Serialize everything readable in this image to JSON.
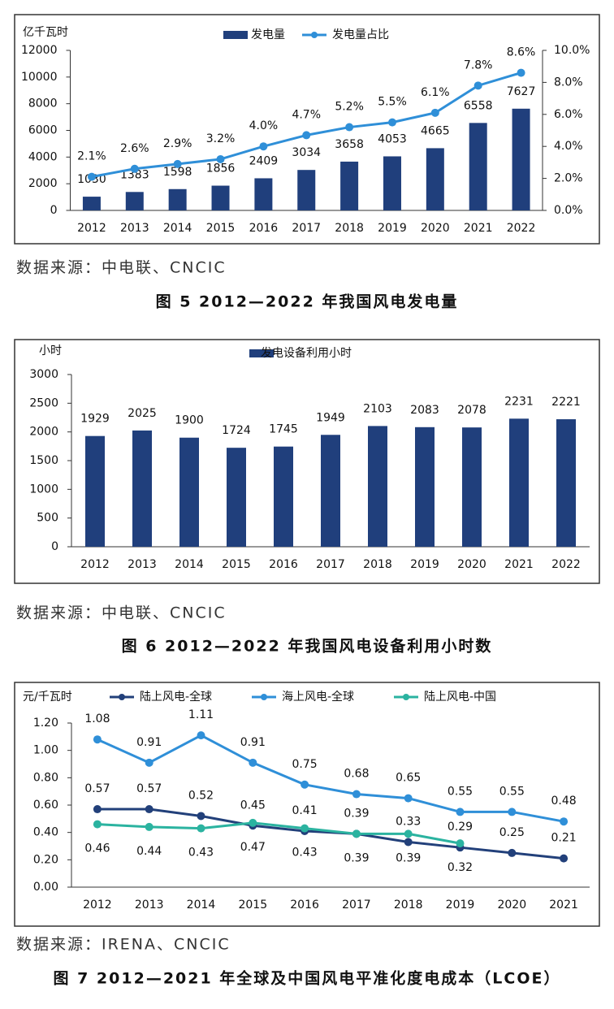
{
  "chart_data": [
    {
      "type": "combo",
      "y_label": "亿千瓦时",
      "categories": [
        "2012",
        "2013",
        "2014",
        "2015",
        "2016",
        "2017",
        "2018",
        "2019",
        "2020",
        "2021",
        "2022"
      ],
      "series": [
        {
          "name": "发电量",
          "type": "bar",
          "color": "#203f7c",
          "values": [
            1030,
            1383,
            1598,
            1856,
            2409,
            3034,
            3658,
            4053,
            4665,
            6558,
            7627
          ]
        },
        {
          "name": "发电量占比",
          "type": "line",
          "axis": "y2",
          "color": "#2f8fd8",
          "values": [
            2.1,
            2.6,
            2.9,
            3.2,
            4.0,
            4.7,
            5.2,
            5.5,
            6.1,
            7.8,
            8.6
          ],
          "value_labels": [
            "2.1%",
            "2.6%",
            "2.9%",
            "3.2%",
            "4.0%",
            "4.7%",
            "5.2%",
            "5.5%",
            "6.1%",
            "7.8%",
            "8.6%"
          ]
        }
      ],
      "ylim": [
        0,
        12000
      ],
      "yticks": [
        0,
        2000,
        4000,
        6000,
        8000,
        10000,
        12000
      ],
      "y2lim": [
        0,
        10
      ],
      "y2ticks": [
        {
          "value": 0,
          "label": "0.0%"
        },
        {
          "value": 2,
          "label": "2.0%"
        },
        {
          "value": 4,
          "label": "4.0%"
        },
        {
          "value": 6,
          "label": "6.0%"
        },
        {
          "value": 8,
          "label": "8.0%"
        },
        {
          "value": 10,
          "label": "10.0%"
        }
      ],
      "source": "数据来源：中电联、CNCIC",
      "caption": "图 5 2012—2022 年我国风电发电量"
    },
    {
      "type": "bar",
      "y_label": "小时",
      "categories": [
        "2012",
        "2013",
        "2014",
        "2015",
        "2016",
        "2017",
        "2018",
        "2019",
        "2020",
        "2021",
        "2022"
      ],
      "series": [
        {
          "name": "发电设备利用小时",
          "type": "bar",
          "color": "#203f7c",
          "values": [
            1929,
            2025,
            1900,
            1724,
            1745,
            1949,
            2103,
            2083,
            2078,
            2231,
            2221
          ]
        }
      ],
      "ylim": [
        0,
        3000
      ],
      "yticks": [
        0,
        500,
        1000,
        1500,
        2000,
        2500,
        3000
      ],
      "source": "数据来源：中电联、CNCIC",
      "caption": "图 6  2012—2022 年我国风电设备利用小时数"
    },
    {
      "type": "line",
      "y_label": "元/千瓦时",
      "categories": [
        "2012",
        "2013",
        "2014",
        "2015",
        "2016",
        "2017",
        "2018",
        "2019",
        "2020",
        "2021"
      ],
      "series": [
        {
          "name": "陆上风电-全球",
          "color": "#22407a",
          "values": [
            0.57,
            0.57,
            0.52,
            0.45,
            0.41,
            0.39,
            0.33,
            0.29,
            0.25,
            0.21
          ]
        },
        {
          "name": "海上风电-全球",
          "color": "#2f8fd8",
          "values": [
            1.08,
            0.91,
            1.11,
            0.91,
            0.75,
            0.68,
            0.65,
            0.55,
            0.55,
            0.48
          ]
        },
        {
          "name": "陆上风电-中国",
          "color": "#2bb3a0",
          "values": [
            0.46,
            0.44,
            0.43,
            0.47,
            0.43,
            0.39,
            0.39,
            0.32,
            null,
            null
          ]
        }
      ],
      "ylim": [
        0,
        1.2
      ],
      "yticks": [
        {
          "value": 0,
          "label": "0.00"
        },
        {
          "value": 0.2,
          "label": "0.20"
        },
        {
          "value": 0.4,
          "label": "0.40"
        },
        {
          "value": 0.6,
          "label": "0.60"
        },
        {
          "value": 0.8,
          "label": "0.80"
        },
        {
          "value": 1.0,
          "label": "1.00"
        },
        {
          "value": 1.2,
          "label": "1.20"
        }
      ],
      "source": "数据来源：IRENA、CNCIC",
      "caption": "图 7  2012—2021 年全球及中国风电平准化度电成本（LCOE）"
    }
  ]
}
